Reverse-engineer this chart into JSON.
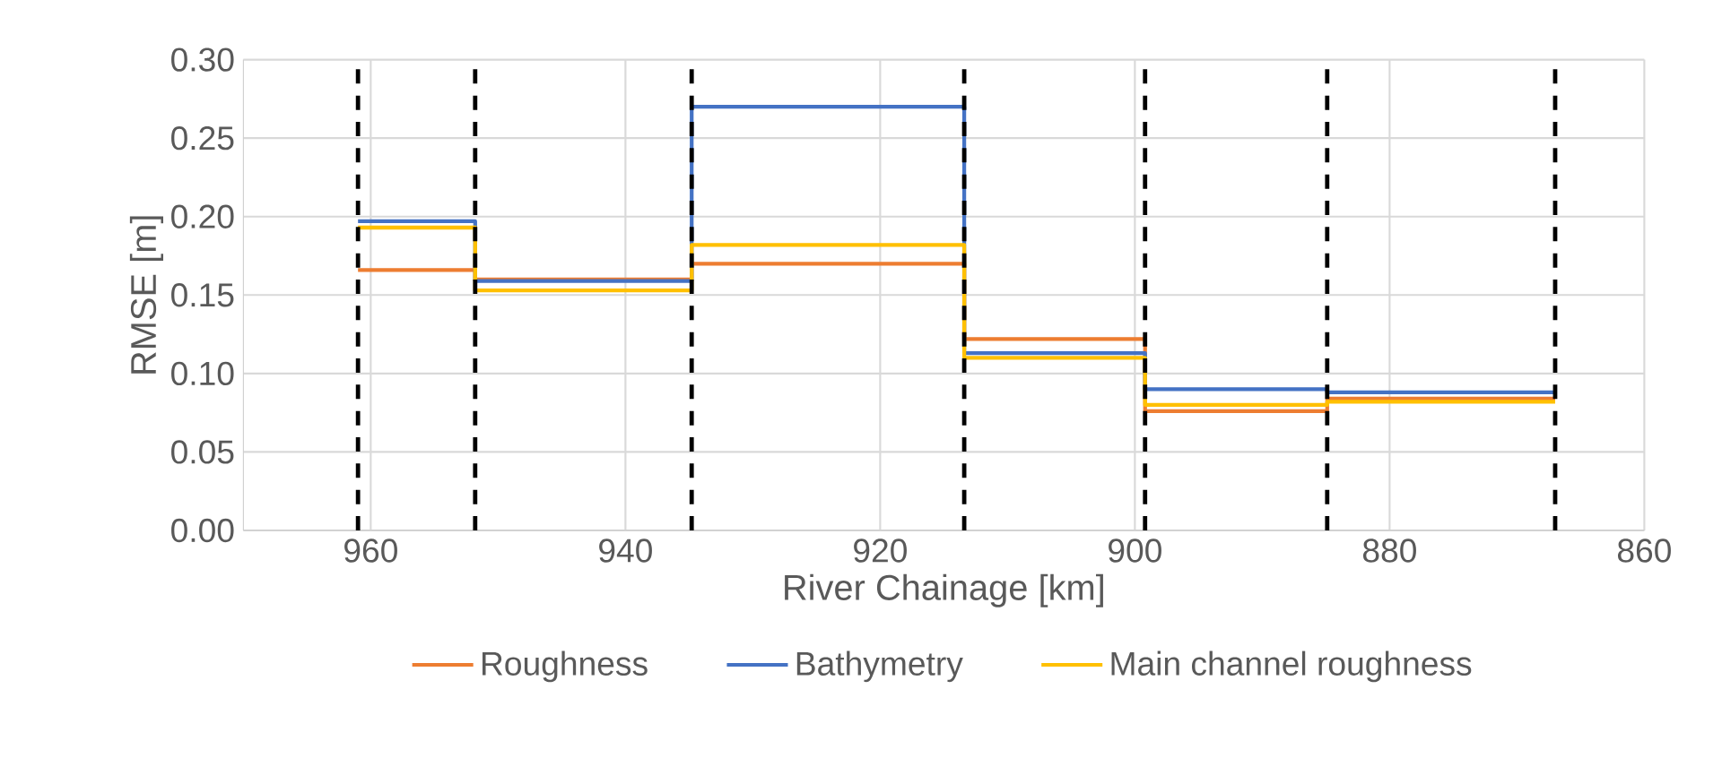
{
  "chart_data": {
    "type": "step",
    "xlabel": "River Chainage [km]",
    "ylabel": "RMSE [m]",
    "x": [
      961,
      951.8,
      934.8,
      913.4,
      899.2,
      884.9,
      867
    ],
    "series": [
      {
        "name": "Roughness",
        "color": "#ed7d31",
        "values": [
          0.166,
          0.16,
          0.17,
          0.122,
          0.076,
          0.084,
          0.084
        ]
      },
      {
        "name": "Bathymetry",
        "color": "#4472c4",
        "values": [
          0.197,
          0.159,
          0.27,
          0.113,
          0.09,
          0.088,
          0.088
        ]
      },
      {
        "name": "Main channel roughness",
        "color": "#ffc000",
        "values": [
          0.193,
          0.153,
          0.182,
          0.11,
          0.08,
          0.082,
          0.082
        ]
      }
    ],
    "xlim": [
      970,
      860
    ],
    "xticks": [
      960,
      940,
      920,
      900,
      880,
      860
    ],
    "ylim": [
      0,
      0.3
    ],
    "yticks": [
      {
        "value": 0,
        "label": "0.00"
      },
      {
        "value": 0.05,
        "label": "0.05"
      },
      {
        "value": 0.1,
        "label": "0.10"
      },
      {
        "value": 0.15,
        "label": "0.15"
      },
      {
        "value": 0.2,
        "label": "0.20"
      },
      {
        "value": 0.25,
        "label": "0.25"
      },
      {
        "value": 0.3,
        "label": "0.30"
      }
    ],
    "ref_lines": [
      {
        "axis": "x",
        "value": 961,
        "color": "#000000",
        "line_style": "dashed"
      },
      {
        "axis": "x",
        "value": 951.8,
        "color": "#000000",
        "line_style": "dashed"
      },
      {
        "axis": "x",
        "value": 934.8,
        "color": "#000000",
        "line_style": "dashed"
      },
      {
        "axis": "x",
        "value": 913.4,
        "color": "#000000",
        "line_style": "dashed"
      },
      {
        "axis": "x",
        "value": 899.2,
        "color": "#000000",
        "line_style": "dashed"
      },
      {
        "axis": "x",
        "value": 884.9,
        "color": "#000000",
        "line_style": "dashed"
      },
      {
        "axis": "x",
        "value": 867,
        "color": "#000000",
        "line_style": "dashed"
      }
    ],
    "grid": true,
    "legend": "bottom",
    "marker": "none",
    "line_style": "solid"
  }
}
